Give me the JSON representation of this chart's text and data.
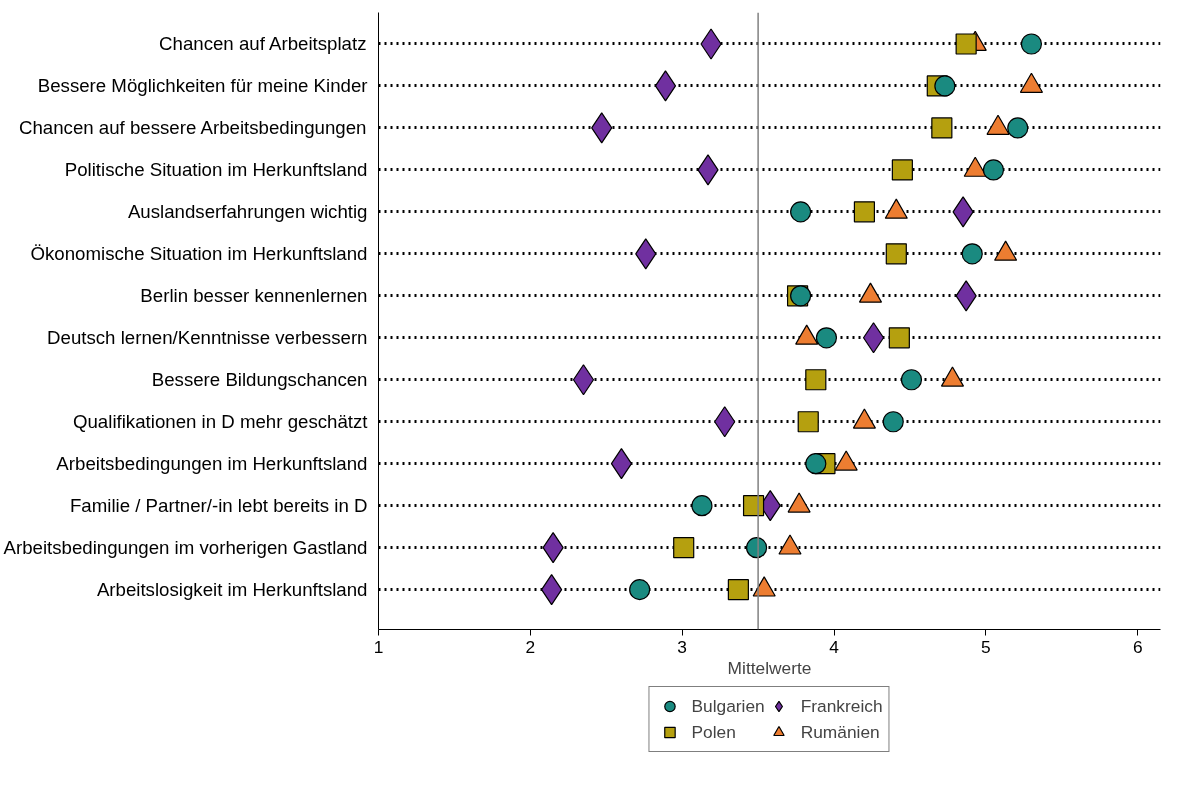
{
  "chart_data": {
    "type": "scatter",
    "orientation": "horizontal",
    "xlabel": "Mittelwerte",
    "categories": [
      "Chancen auf Arbeitsplatz",
      "Bessere Möglichkeiten für meine Kinder",
      "Chancen auf bessere Arbeitsbedingungen",
      "Politische Situation im Herkunftsland",
      "Auslandserfahrungen wichtig",
      "Ökonomische Situation im Herkunftsland",
      "Berlin besser kennenlernen",
      "Deutsch lernen/Kenntnisse verbessern",
      "Bessere Bildungschancen",
      "Qualifikationen in D mehr geschätzt",
      "Arbeitsbedingungen im Herkunftsland",
      "Familie / Partner/-in lebt bereits in D",
      "Arbeitsbedingungen im vorherigen Gastland",
      "Arbeitslosigkeit im Herkunftsland"
    ],
    "series": [
      {
        "name": "Bulgarien",
        "color": "#1a8a80",
        "marker": "circle",
        "values": [
          5.3,
          4.73,
          5.21,
          5.05,
          3.78,
          4.91,
          3.78,
          3.95,
          4.51,
          4.39,
          3.88,
          3.13,
          3.49,
          2.72
        ]
      },
      {
        "name": "Polen",
        "color": "#b5a00f",
        "marker": "square",
        "values": [
          4.87,
          4.68,
          4.71,
          4.45,
          4.2,
          4.41,
          3.76,
          4.43,
          3.88,
          3.83,
          3.94,
          3.47,
          3.01,
          3.37
        ]
      },
      {
        "name": "Frankreich",
        "color": "#7030a0",
        "marker": "diamond",
        "values": [
          3.19,
          2.89,
          2.47,
          3.17,
          4.85,
          2.76,
          4.87,
          4.26,
          2.35,
          3.28,
          2.6,
          3.58,
          2.15,
          2.14
        ]
      },
      {
        "name": "Rumänien",
        "color": "#ed7d31",
        "marker": "triangle",
        "values": [
          4.93,
          5.3,
          5.08,
          4.93,
          4.41,
          5.13,
          4.24,
          3.82,
          4.78,
          4.2,
          4.08,
          3.77,
          3.71,
          3.54
        ]
      }
    ],
    "xlim": [
      1,
      6.15
    ],
    "xticks": [
      1,
      2,
      3,
      4,
      5,
      6
    ],
    "grid": "y",
    "line_style": "dotted",
    "legend": "bottom",
    "ref_lines": [
      {
        "axis": "x",
        "value": 3.5,
        "color": "#808080"
      }
    ]
  }
}
